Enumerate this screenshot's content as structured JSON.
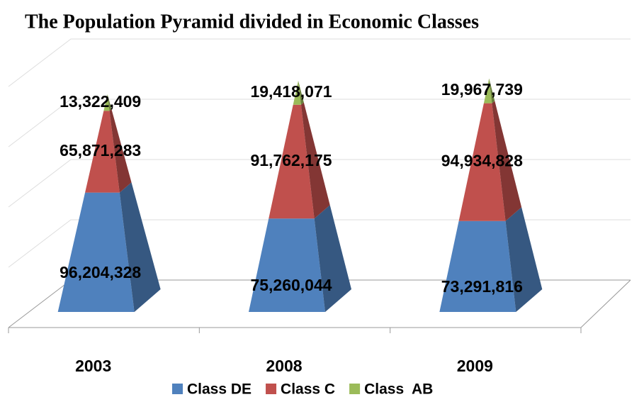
{
  "chart_data": {
    "type": "stacked_pyramid",
    "title": "The Population Pyramid divided in Economic Classes",
    "categories": [
      "2003",
      "2008",
      "2009"
    ],
    "series": [
      {
        "name": "Class DE",
        "color": "#4f81bd",
        "values": [
          96204328,
          75260044,
          73291816
        ],
        "value_labels": [
          "96,204,328",
          "75,260,044",
          "73,291,816"
        ]
      },
      {
        "name": "Class C",
        "color": "#c0504d",
        "values": [
          65871283,
          91762175,
          94934828
        ],
        "value_labels": [
          "65,871,283",
          "91,762,175",
          "94,934,828"
        ]
      },
      {
        "name": "Class  AB",
        "color": "#9bbb59",
        "values": [
          13322409,
          19418071,
          19967739
        ],
        "value_labels": [
          "13,322,409",
          "19,418,071",
          "19,967,739"
        ]
      }
    ],
    "ylim": [
      0,
      200000000
    ],
    "yticks": [
      0,
      50000000,
      100000000,
      150000000,
      200000000
    ],
    "grid": true,
    "legend": "bottom"
  }
}
